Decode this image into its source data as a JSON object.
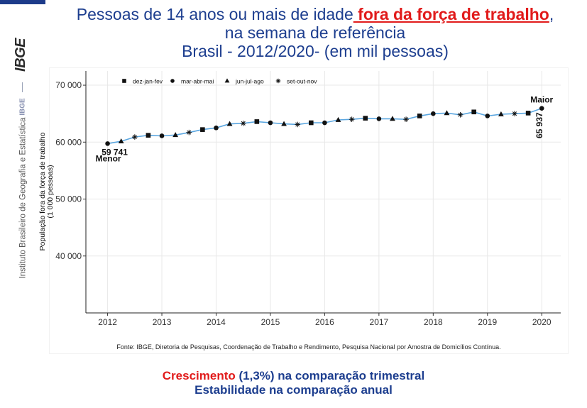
{
  "header": {
    "title_part1": "Pessoas de 14 anos ou mais de idade",
    "title_highlight": " fora da força de trabalho",
    "title_part2": ",",
    "title_line2": "na semana de referência",
    "title_line3": "Brasil - 2012/2020- (em mil pessoas)"
  },
  "sidebar": {
    "logo_text": "IBGE",
    "small_logo": "IBGE",
    "institute": "Instituto Brasileiro de Geografia e Estatística"
  },
  "chart_data": {
    "type": "line",
    "ylabel": "População fora da força de trabalho",
    "ylabel2": "(1 000 pessoas)",
    "xlabel": "",
    "ylim": [
      30000,
      72500
    ],
    "xlim": [
      2011.6,
      2020.35
    ],
    "yticks": [
      40000,
      50000,
      60000,
      70000
    ],
    "ytick_labels": [
      "40 000",
      "50 000",
      "60 000",
      "70 000"
    ],
    "xticks": [
      2012,
      2013,
      2014,
      2015,
      2016,
      2017,
      2018,
      2019,
      2020
    ],
    "xtick_labels": [
      "2012",
      "2013",
      "2014",
      "2015",
      "2016",
      "2017",
      "2018",
      "2019",
      "2020"
    ],
    "grid": true,
    "legend_position": "top-left",
    "legend": [
      {
        "label": "dez-jan-fev",
        "marker": "square"
      },
      {
        "label": "mar-abr-mai",
        "marker": "circle"
      },
      {
        "label": "jun-jul-ago",
        "marker": "triangle"
      },
      {
        "label": "set-out-nov",
        "marker": "asterisk"
      }
    ],
    "line_color": "#5aa6e0",
    "x": [
      2012.0,
      2012.25,
      2012.5,
      2012.75,
      2013.0,
      2013.25,
      2013.5,
      2013.75,
      2014.0,
      2014.25,
      2014.5,
      2014.75,
      2015.0,
      2015.25,
      2015.5,
      2015.75,
      2016.0,
      2016.25,
      2016.5,
      2016.75,
      2017.0,
      2017.25,
      2017.5,
      2017.75,
      2018.0,
      2018.25,
      2018.5,
      2018.75,
      2019.0,
      2019.25,
      2019.5,
      2019.75,
      2020.0
    ],
    "markers": [
      "circle",
      "triangle",
      "asterisk",
      "square",
      "circle",
      "triangle",
      "asterisk",
      "square",
      "circle",
      "triangle",
      "asterisk",
      "square",
      "circle",
      "triangle",
      "asterisk",
      "square",
      "circle",
      "triangle",
      "asterisk",
      "square",
      "circle",
      "triangle",
      "asterisk",
      "square",
      "circle",
      "triangle",
      "asterisk",
      "square",
      "circle",
      "triangle",
      "asterisk",
      "square",
      "circle"
    ],
    "values": [
      59741,
      60150,
      60900,
      61200,
      61100,
      61250,
      61700,
      62200,
      62500,
      63200,
      63300,
      63600,
      63400,
      63200,
      63100,
      63400,
      63400,
      63900,
      64000,
      64200,
      64100,
      64100,
      64000,
      64600,
      65000,
      65100,
      64800,
      65300,
      64600,
      64900,
      65000,
      65100,
      65937
    ],
    "annotations": [
      {
        "value_label": "59 741",
        "label": "Menor"
      },
      {
        "value_label": "65 937",
        "label": "Maior"
      }
    ]
  },
  "source": "Fonte: IBGE, Diretoria de Pesquisas, Coordenação de Trabalho e Rendimento, Pesquisa Nacional por Amostra de Domicílios Contínua.",
  "footer": {
    "line1_red": "Crescimento",
    "line1_rest": " (1,3%) na comparação trimestral",
    "line2": "Estabilidade na comparação anual"
  }
}
